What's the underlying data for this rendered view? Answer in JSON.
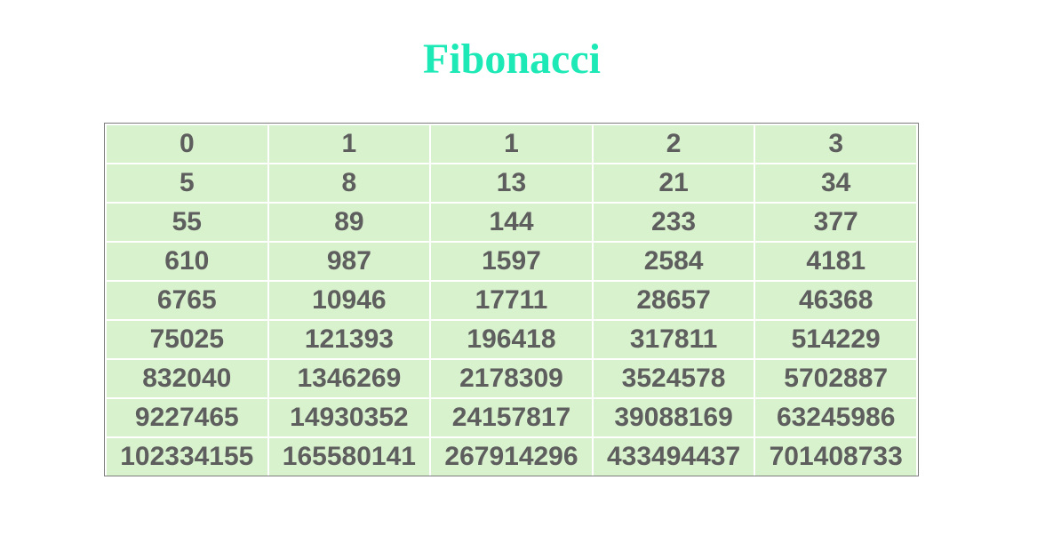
{
  "title": "Fibonacci",
  "colors": {
    "title": "#1de9b6",
    "cell_background": "#d7f2cc",
    "cell_text": "#5e5e5e"
  },
  "rows": [
    [
      "0",
      "1",
      "1",
      "2",
      "3"
    ],
    [
      "5",
      "8",
      "13",
      "21",
      "34"
    ],
    [
      "55",
      "89",
      "144",
      "233",
      "377"
    ],
    [
      "610",
      "987",
      "1597",
      "2584",
      "4181"
    ],
    [
      "6765",
      "10946",
      "17711",
      "28657",
      "46368"
    ],
    [
      "75025",
      "121393",
      "196418",
      "317811",
      "514229"
    ],
    [
      "832040",
      "1346269",
      "2178309",
      "3524578",
      "5702887"
    ],
    [
      "9227465",
      "14930352",
      "24157817",
      "39088169",
      "63245986"
    ],
    [
      "102334155",
      "165580141",
      "267914296",
      "433494437",
      "701408733"
    ]
  ]
}
